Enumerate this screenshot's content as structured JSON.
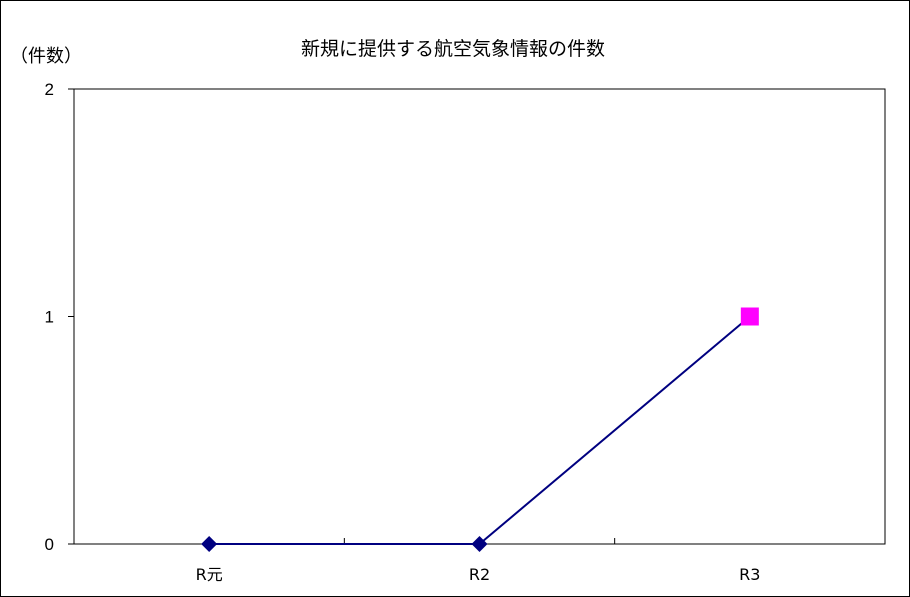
{
  "chart_data": {
    "type": "line",
    "title": "新規に提供する航空気象情報の件数",
    "y_unit_label": "（件数）",
    "categories": [
      "R元",
      "R2",
      "R3"
    ],
    "yticks": [
      0,
      1,
      2
    ],
    "ylim": [
      0,
      2
    ],
    "grid": false,
    "values": [
      0,
      0,
      1
    ],
    "marker_shapes": [
      "diamond",
      "diamond",
      "square"
    ],
    "colors": {
      "line": "#000080",
      "default_marker": "#000080",
      "highlight_marker": "#ff00ff",
      "axis": "#000000"
    }
  }
}
